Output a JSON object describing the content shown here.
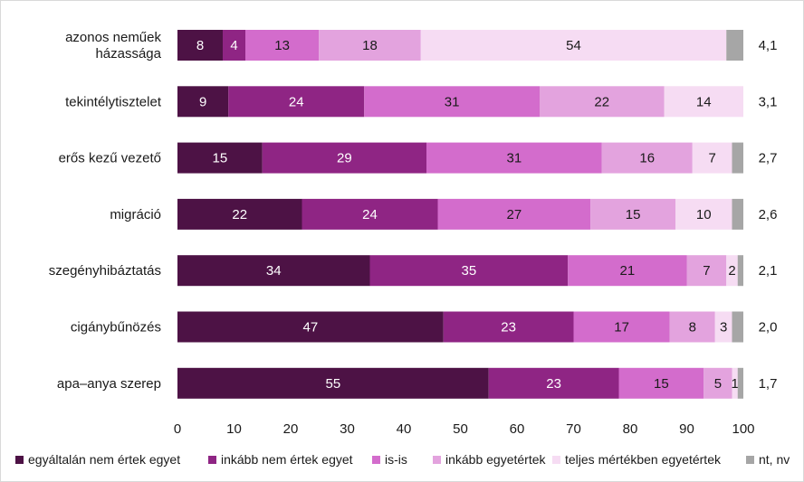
{
  "chart_data": {
    "type": "bar",
    "orientation": "horizontal",
    "stacked": true,
    "categories": [
      "azonos neműek házassága",
      "tekintélytisztelet",
      "erős kezű vezető",
      "migráció",
      "szegényhibáztatás",
      "cigánybűnözés",
      "apa–anya szerep"
    ],
    "category_lines": [
      [
        "azonos neműek",
        "házassága"
      ],
      [
        "tekintélytisztelet"
      ],
      [
        "erős kezű vezető"
      ],
      [
        "migráció"
      ],
      [
        "szegényhibáztatás"
      ],
      [
        "cigánybűnözés"
      ],
      [
        "apa–anya szerep"
      ]
    ],
    "series": [
      {
        "name": "egyáltalán nem értek egyet",
        "color": "#4d1245",
        "label_color": "#ffffff",
        "values": [
          8,
          9,
          15,
          22,
          34,
          47,
          55
        ]
      },
      {
        "name": "inkább nem értek egyet",
        "color": "#8f2584",
        "label_color": "#ffffff",
        "values": [
          4,
          24,
          29,
          24,
          35,
          23,
          23
        ]
      },
      {
        "name": "is-is",
        "color": "#d36ccc",
        "label_color": "#1a1a1a",
        "values": [
          13,
          31,
          31,
          27,
          21,
          17,
          15
        ]
      },
      {
        "name": "inkább egyetértek",
        "color": "#e3a3de",
        "label_color": "#1a1a1a",
        "values": [
          18,
          22,
          16,
          15,
          7,
          8,
          5
        ]
      },
      {
        "name": "teljes mértékben egyetértek",
        "color": "#f6dcf3",
        "label_color": "#1a1a1a",
        "values": [
          54,
          14,
          7,
          10,
          2,
          3,
          1
        ]
      },
      {
        "name": "nt, nv",
        "color": "#a6a6a6",
        "label_color": "#1a1a1a",
        "values": [
          3,
          0,
          2,
          2,
          1,
          2,
          1
        ]
      }
    ],
    "row_labels": [
      "4,1",
      "3,1",
      "2,7",
      "2,6",
      "2,1",
      "2,0",
      "1,7"
    ],
    "xlim": [
      0,
      100
    ],
    "xticks": [
      0,
      10,
      20,
      30,
      40,
      50,
      60,
      70,
      80,
      90,
      100
    ],
    "grid": false,
    "legend_position": "bottom"
  }
}
